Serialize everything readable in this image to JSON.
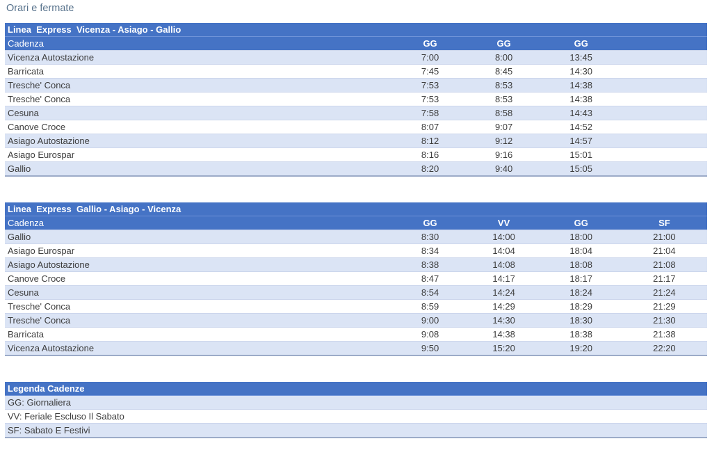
{
  "page": {
    "title": "Orari e fermate"
  },
  "colors": {
    "header_blue": "#4573c5",
    "row_alt_blue": "#dbe4f5",
    "row_white": "#ffffff",
    "table_bottom_border": "#9cabc8",
    "page_title_color": "#56718b"
  },
  "tables": [
    {
      "title": "Linea  Express  Vicenza - Asiago - Gallio",
      "cadenza_label": "Cadenza",
      "columns": [
        "GG",
        "GG",
        "GG"
      ],
      "rows": [
        {
          "stop": "Vicenza Autostazione",
          "times": [
            "7:00",
            "8:00",
            "13:45"
          ]
        },
        {
          "stop": "Barricata",
          "times": [
            "7:45",
            "8:45",
            "14:30"
          ]
        },
        {
          "stop": "Tresche' Conca",
          "times": [
            "7:53",
            "8:53",
            "14:38"
          ]
        },
        {
          "stop": "Tresche' Conca",
          "times": [
            "7:53",
            "8:53",
            "14:38"
          ]
        },
        {
          "stop": "Cesuna",
          "times": [
            "7:58",
            "8:58",
            "14:43"
          ]
        },
        {
          "stop": "Canove Croce",
          "times": [
            "8:07",
            "9:07",
            "14:52"
          ]
        },
        {
          "stop": "Asiago Autostazione",
          "times": [
            "8:12",
            "9:12",
            "14:57"
          ]
        },
        {
          "stop": "Asiago Eurospar",
          "times": [
            "8:16",
            "9:16",
            "15:01"
          ]
        },
        {
          "stop": "Gallio",
          "times": [
            "8:20",
            "9:40",
            "15:05"
          ]
        }
      ]
    },
    {
      "title": "Linea  Express  Gallio - Asiago - Vicenza",
      "cadenza_label": "Cadenza",
      "columns": [
        "GG",
        "VV",
        "GG",
        "SF"
      ],
      "rows": [
        {
          "stop": "Gallio",
          "times": [
            "8:30",
            "14:00",
            "18:00",
            "21:00"
          ]
        },
        {
          "stop": "Asiago Eurospar",
          "times": [
            "8:34",
            "14:04",
            "18:04",
            "21:04"
          ]
        },
        {
          "stop": "Asiago Autostazione",
          "times": [
            "8:38",
            "14:08",
            "18:08",
            "21:08"
          ]
        },
        {
          "stop": "Canove Croce",
          "times": [
            "8:47",
            "14:17",
            "18:17",
            "21:17"
          ]
        },
        {
          "stop": "Cesuna",
          "times": [
            "8:54",
            "14:24",
            "18:24",
            "21:24"
          ]
        },
        {
          "stop": "Tresche' Conca",
          "times": [
            "8:59",
            "14:29",
            "18:29",
            "21:29"
          ]
        },
        {
          "stop": "Tresche' Conca",
          "times": [
            "9:00",
            "14:30",
            "18:30",
            "21:30"
          ]
        },
        {
          "stop": "Barricata",
          "times": [
            "9:08",
            "14:38",
            "18:38",
            "21:38"
          ]
        },
        {
          "stop": "Vicenza Autostazione",
          "times": [
            "9:50",
            "15:20",
            "19:20",
            "22:20"
          ]
        }
      ]
    }
  ],
  "legend": {
    "title": "Legenda Cadenze",
    "items": [
      "GG: Giornaliera",
      "VV: Feriale Escluso Il Sabato",
      "SF: Sabato E Festivi"
    ]
  }
}
